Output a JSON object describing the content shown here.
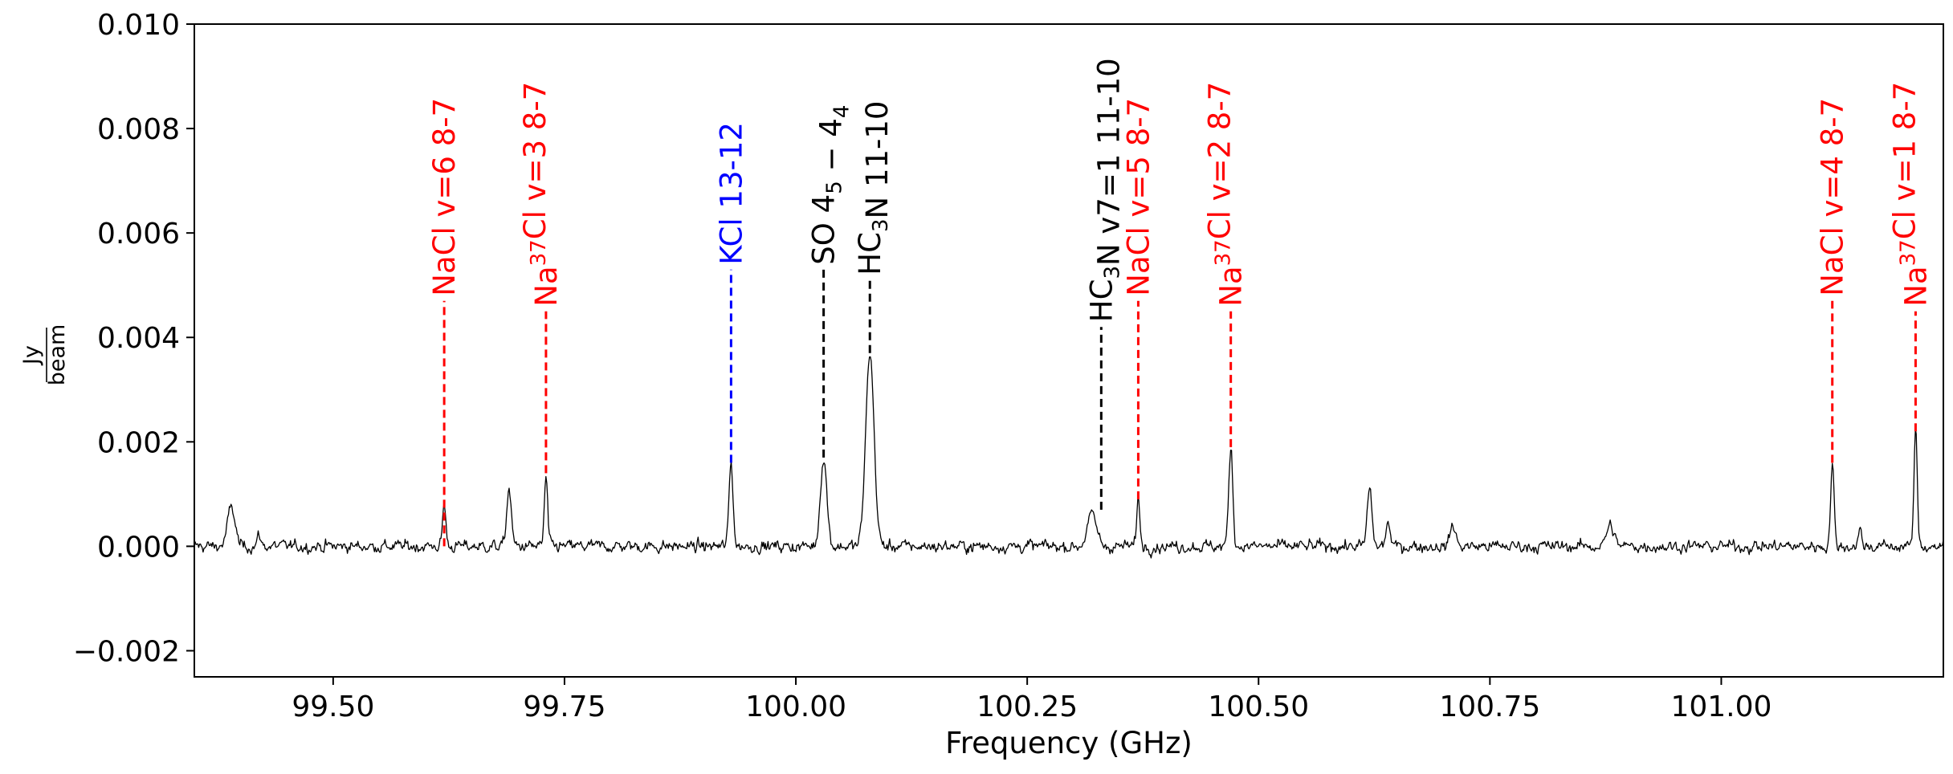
{
  "chart_data": {
    "type": "line",
    "xlabel": "Frequency (GHz)",
    "ylabel_numerator": "Jy",
    "ylabel_denominator": "beam",
    "xlim": [
      99.35,
      101.24
    ],
    "ylim": [
      -0.0025,
      0.01
    ],
    "x_ticks": [
      99.5,
      99.75,
      100.0,
      100.25,
      100.5,
      100.75,
      101.0
    ],
    "x_tick_labels": [
      "99.50",
      "99.75",
      "100.00",
      "100.25",
      "100.50",
      "100.75",
      "101.00"
    ],
    "y_ticks": [
      -0.002,
      0.0,
      0.002,
      0.004,
      0.006,
      0.008,
      0.01
    ],
    "y_tick_labels": [
      "−0.002",
      "0.000",
      "0.002",
      "0.004",
      "0.006",
      "0.008",
      "0.010"
    ],
    "spectrum_color": "#000000",
    "spectrum_baseline": 0.0,
    "noise_rms": 0.00011,
    "peaks": [
      {
        "x": 99.39,
        "amp": 0.00075,
        "width": 0.004
      },
      {
        "x": 99.42,
        "amp": 0.0002,
        "width": 0.002
      },
      {
        "x": 99.62,
        "amp": 0.0008,
        "width": 0.0018
      },
      {
        "x": 99.69,
        "amp": 0.0011,
        "width": 0.0025
      },
      {
        "x": 99.73,
        "amp": 0.0013,
        "width": 0.0018
      },
      {
        "x": 99.93,
        "amp": 0.0016,
        "width": 0.0022
      },
      {
        "x": 100.03,
        "amp": 0.0017,
        "width": 0.0035
      },
      {
        "x": 100.08,
        "amp": 0.0037,
        "width": 0.0045
      },
      {
        "x": 100.32,
        "amp": 0.0006,
        "width": 0.005
      },
      {
        "x": 100.37,
        "amp": 0.0009,
        "width": 0.0018
      },
      {
        "x": 100.47,
        "amp": 0.0019,
        "width": 0.0022
      },
      {
        "x": 100.62,
        "amp": 0.0011,
        "width": 0.0025
      },
      {
        "x": 100.64,
        "amp": 0.0005,
        "width": 0.002
      },
      {
        "x": 100.71,
        "amp": 0.0004,
        "width": 0.003
      },
      {
        "x": 100.88,
        "amp": 0.0004,
        "width": 0.004
      },
      {
        "x": 101.12,
        "amp": 0.0016,
        "width": 0.0018
      },
      {
        "x": 101.15,
        "amp": 0.0003,
        "width": 0.002
      },
      {
        "x": 101.21,
        "amp": 0.0022,
        "width": 0.0018
      }
    ],
    "line_markers": [
      {
        "x": 99.62,
        "y_bottom": 0.0,
        "y_top": 0.0047,
        "color": "#ff0000",
        "label_parts": [
          [
            "NaCl v=6 8-7",
            ""
          ]
        ]
      },
      {
        "x": 99.73,
        "y_bottom": 0.0014,
        "y_top": 0.0045,
        "color": "#ff0000",
        "label_parts": [
          [
            "Na",
            ""
          ],
          [
            "37",
            "sup"
          ],
          [
            "Cl v=3 8-7",
            ""
          ]
        ]
      },
      {
        "x": 99.93,
        "y_bottom": 0.0016,
        "y_top": 0.0053,
        "color": "#0000ff",
        "label_parts": [
          [
            "KCl 13-12",
            ""
          ]
        ]
      },
      {
        "x": 100.03,
        "y_bottom": 0.0017,
        "y_top": 0.0053,
        "color": "#000000",
        "label_parts": [
          [
            "SO 4",
            ""
          ],
          [
            "5",
            "sub"
          ],
          [
            " − 4",
            ""
          ],
          [
            "4",
            "sub"
          ]
        ]
      },
      {
        "x": 100.08,
        "y_bottom": 0.0037,
        "y_top": 0.0051,
        "color": "#000000",
        "label_parts": [
          [
            "HC",
            ""
          ],
          [
            "3",
            "sub"
          ],
          [
            "N 11-10",
            ""
          ]
        ]
      },
      {
        "x": 100.33,
        "y_bottom": 0.0007,
        "y_top": 0.0042,
        "color": "#000000",
        "label_parts": [
          [
            "HC",
            ""
          ],
          [
            "3",
            "sub"
          ],
          [
            "N v7=1 11-10",
            ""
          ]
        ]
      },
      {
        "x": 100.37,
        "y_bottom": 0.0009,
        "y_top": 0.0047,
        "color": "#ff0000",
        "label_parts": [
          [
            "NaCl v=5 8-7",
            ""
          ]
        ]
      },
      {
        "x": 100.47,
        "y_bottom": 0.0019,
        "y_top": 0.0045,
        "color": "#ff0000",
        "label_parts": [
          [
            "Na",
            ""
          ],
          [
            "37",
            "sup"
          ],
          [
            "Cl v=2 8-7",
            ""
          ]
        ]
      },
      {
        "x": 101.12,
        "y_bottom": 0.0016,
        "y_top": 0.0047,
        "color": "#ff0000",
        "label_parts": [
          [
            "NaCl v=4 8-7",
            ""
          ]
        ]
      },
      {
        "x": 101.21,
        "y_bottom": 0.0022,
        "y_top": 0.0045,
        "color": "#ff0000",
        "label_parts": [
          [
            "Na",
            ""
          ],
          [
            "37",
            "sup"
          ],
          [
            "Cl v=1 8-7",
            ""
          ]
        ]
      }
    ]
  }
}
